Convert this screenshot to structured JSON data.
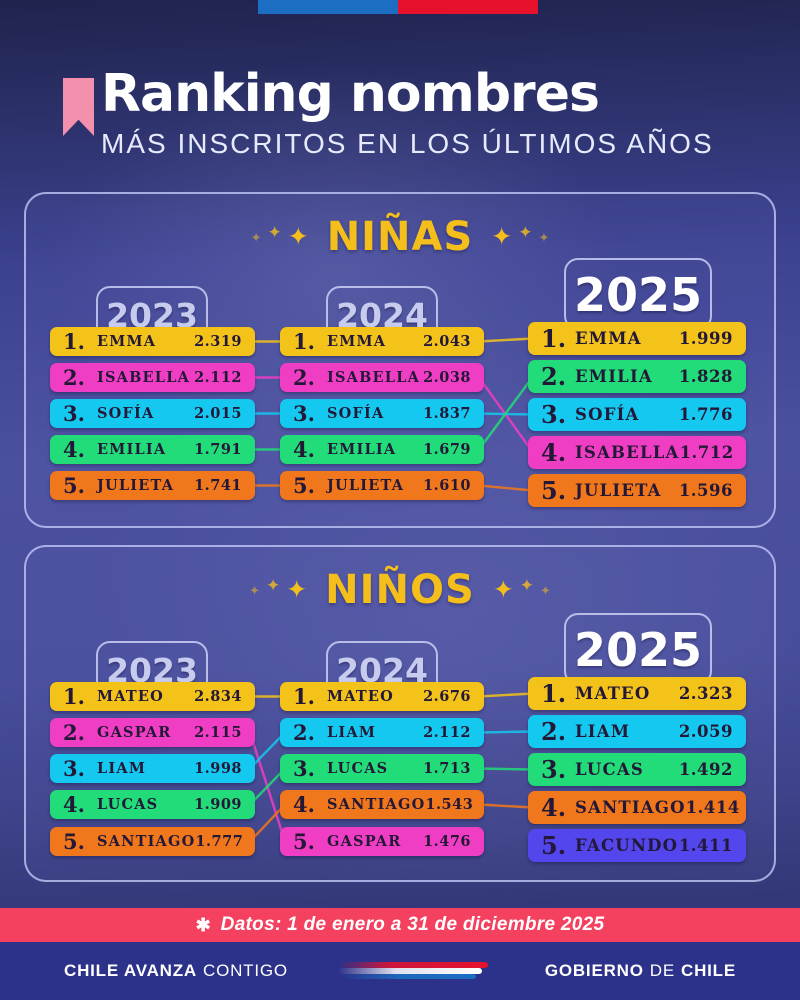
{
  "palette": {
    "yellow": "#F3C31A",
    "magenta": "#F03EC4",
    "cyan": "#15C8F0",
    "green": "#21DC78",
    "orange": "#F0771B",
    "violet": "#5246EC"
  },
  "flag": {
    "blue": "#1B6EC2",
    "red": "#E8112D"
  },
  "header": {
    "title": "Ranking nombres",
    "subtitle": "MÁS INSCRITOS EN LOS ÚLTIMOS AÑOS",
    "bookmark_color": "#F290AE"
  },
  "icons": {
    "sparkle": "✦",
    "asterisk": "✱"
  },
  "year_label_colors": {
    "past": "#C7CBEE",
    "current": "#FFFFFF"
  },
  "chart_data": [
    {
      "type": "table",
      "title": "NIÑAS",
      "years": [
        "2023",
        "2024",
        "2025"
      ],
      "columns": [
        {
          "year": "2023",
          "rows": [
            {
              "rank": "1.",
              "name": "EMMA",
              "value": "2.319",
              "color": "yellow"
            },
            {
              "rank": "2.",
              "name": "ISABELLA",
              "value": "2.112",
              "color": "magenta"
            },
            {
              "rank": "3.",
              "name": "SOFÍA",
              "value": "2.015",
              "color": "cyan"
            },
            {
              "rank": "4.",
              "name": "EMILIA",
              "value": "1.791",
              "color": "green"
            },
            {
              "rank": "5.",
              "name": "JULIETA",
              "value": "1.741",
              "color": "orange"
            }
          ]
        },
        {
          "year": "2024",
          "rows": [
            {
              "rank": "1.",
              "name": "EMMA",
              "value": "2.043",
              "color": "yellow"
            },
            {
              "rank": "2.",
              "name": "ISABELLA",
              "value": "2.038",
              "color": "magenta"
            },
            {
              "rank": "3.",
              "name": "SOFÍA",
              "value": "1.837",
              "color": "cyan"
            },
            {
              "rank": "4.",
              "name": "EMILIA",
              "value": "1.679",
              "color": "green"
            },
            {
              "rank": "5.",
              "name": "JULIETA",
              "value": "1.610",
              "color": "orange"
            }
          ]
        },
        {
          "year": "2025",
          "rows": [
            {
              "rank": "1.",
              "name": "EMMA",
              "value": "1.999",
              "color": "yellow"
            },
            {
              "rank": "2.",
              "name": "EMILIA",
              "value": "1.828",
              "color": "green"
            },
            {
              "rank": "3.",
              "name": "SOFÍA",
              "value": "1.776",
              "color": "cyan"
            },
            {
              "rank": "4.",
              "name": "ISABELLA",
              "value": "1.712",
              "color": "magenta"
            },
            {
              "rank": "5.",
              "name": "JULIETA",
              "value": "1.596",
              "color": "orange"
            }
          ]
        }
      ],
      "links_2023_2024": [
        [
          0,
          0
        ],
        [
          1,
          1
        ],
        [
          2,
          2
        ],
        [
          3,
          3
        ],
        [
          4,
          4
        ]
      ],
      "links_2024_2025": [
        [
          0,
          0
        ],
        [
          1,
          3
        ],
        [
          2,
          2
        ],
        [
          3,
          1
        ],
        [
          4,
          4
        ]
      ]
    },
    {
      "type": "table",
      "title": "NIÑOS",
      "years": [
        "2023",
        "2024",
        "2025"
      ],
      "columns": [
        {
          "year": "2023",
          "rows": [
            {
              "rank": "1.",
              "name": "MATEO",
              "value": "2.834",
              "color": "yellow"
            },
            {
              "rank": "2.",
              "name": "GASPAR",
              "value": "2.115",
              "color": "magenta"
            },
            {
              "rank": "3.",
              "name": "LIAM",
              "value": "1.998",
              "color": "cyan"
            },
            {
              "rank": "4.",
              "name": "LUCAS",
              "value": "1.909",
              "color": "green"
            },
            {
              "rank": "5.",
              "name": "SANTIAGO",
              "value": "1.777",
              "color": "orange"
            }
          ]
        },
        {
          "year": "2024",
          "rows": [
            {
              "rank": "1.",
              "name": "MATEO",
              "value": "2.676",
              "color": "yellow"
            },
            {
              "rank": "2.",
              "name": "LIAM",
              "value": "2.112",
              "color": "cyan"
            },
            {
              "rank": "3.",
              "name": "LUCAS",
              "value": "1.713",
              "color": "green"
            },
            {
              "rank": "4.",
              "name": "SANTIAGO",
              "value": "1.543",
              "color": "orange"
            },
            {
              "rank": "5.",
              "name": "GASPAR",
              "value": "1.476",
              "color": "magenta"
            }
          ]
        },
        {
          "year": "2025",
          "rows": [
            {
              "rank": "1.",
              "name": "MATEO",
              "value": "2.323",
              "color": "yellow"
            },
            {
              "rank": "2.",
              "name": "LIAM",
              "value": "2.059",
              "color": "cyan"
            },
            {
              "rank": "3.",
              "name": "LUCAS",
              "value": "1.492",
              "color": "green"
            },
            {
              "rank": "4.",
              "name": "SANTIAGO",
              "value": "1.414",
              "color": "orange"
            },
            {
              "rank": "5.",
              "name": "FACUNDO",
              "value": "1.411",
              "color": "violet"
            }
          ]
        }
      ],
      "links_2023_2024": [
        [
          0,
          0
        ],
        [
          1,
          4
        ],
        [
          2,
          1
        ],
        [
          3,
          2
        ],
        [
          4,
          3
        ]
      ],
      "links_2024_2025": [
        [
          0,
          0
        ],
        [
          1,
          1
        ],
        [
          2,
          2
        ],
        [
          3,
          3
        ]
      ]
    }
  ],
  "banner": {
    "text": "Datos: 1 de enero a 31 de diciembre 2025",
    "background": "#F4415F"
  },
  "footer": {
    "left_bold": "CHILE AVANZA",
    "left_regular": "CONTIGO",
    "right_bold1": "GOBIERNO",
    "right_light": "DE",
    "right_bold2": "CHILE",
    "background": "#2C3189"
  }
}
